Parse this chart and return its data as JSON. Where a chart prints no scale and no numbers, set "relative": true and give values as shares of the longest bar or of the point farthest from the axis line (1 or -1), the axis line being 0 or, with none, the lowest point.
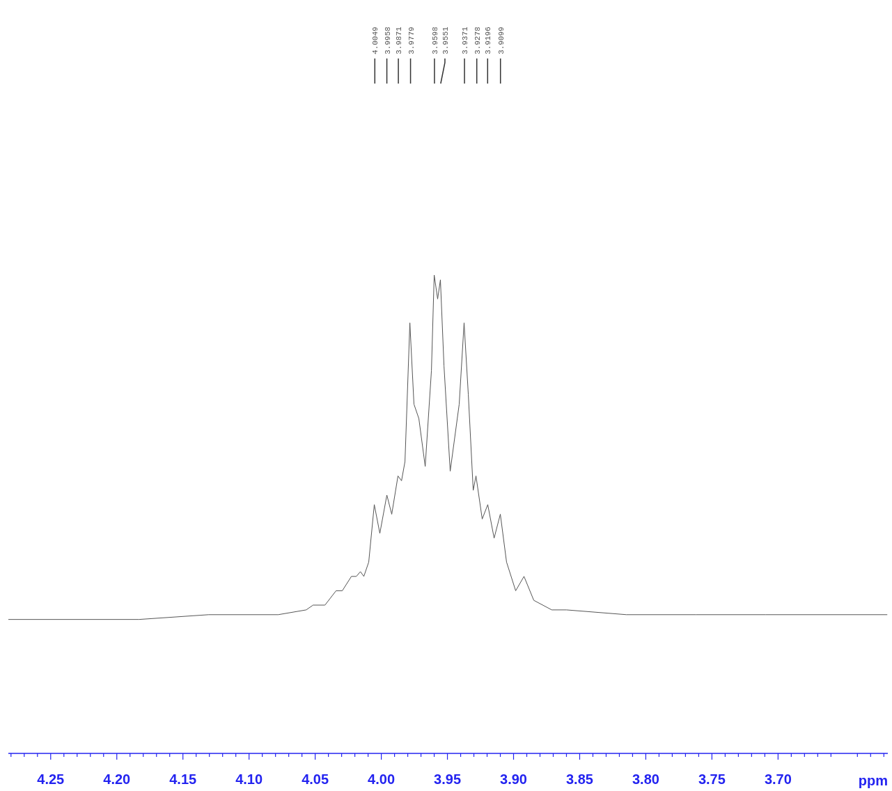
{
  "chart_data": {
    "type": "line",
    "relative": true,
    "xlabel": "ppm",
    "x": [
      4.282,
      4.1832,
      4.1305,
      4.0779,
      4.0568,
      4.0516,
      4.0426,
      4.0342,
      4.0295,
      4.0226,
      4.0189,
      4.0158,
      4.0132,
      4.0095,
      4.0053,
      4.0011,
      3.9958,
      3.9921,
      3.9874,
      3.9847,
      3.9821,
      3.9784,
      3.9753,
      3.9716,
      3.9668,
      3.9621,
      3.96,
      3.9574,
      3.9553,
      3.9526,
      3.9479,
      3.9411,
      3.9374,
      3.9342,
      3.9305,
      3.9284,
      3.9237,
      3.9195,
      3.9147,
      3.91,
      3.9053,
      3.8984,
      3.8921,
      3.8847,
      3.8711,
      3.86,
      3.8147,
      3.7621,
      3.7095,
      3.6174
    ],
    "series": [
      {
        "color": "#555555",
        "values": [
          0.28,
          0.28,
          0.29,
          0.29,
          0.3,
          0.31,
          0.31,
          0.34,
          0.34,
          0.37,
          0.37,
          0.38,
          0.37,
          0.4,
          0.52,
          0.46,
          0.54,
          0.5,
          0.58,
          0.57,
          0.61,
          0.9,
          0.73,
          0.7,
          0.6,
          0.8,
          1.0,
          0.95,
          0.99,
          0.81,
          0.59,
          0.73,
          0.9,
          0.75,
          0.55,
          0.58,
          0.49,
          0.52,
          0.45,
          0.5,
          0.4,
          0.34,
          0.37,
          0.32,
          0.3,
          0.3,
          0.29,
          0.29,
          0.29,
          0.29
        ]
      }
    ],
    "xlim": [
      4.282,
      3.617
    ],
    "xticks": [
      4.25,
      {
        "value": 4.2,
        "label": "4.20"
      },
      4.15,
      {
        "value": 4.1,
        "label": "4.10"
      },
      4.05,
      {
        "value": 4.0,
        "label": "4.00"
      },
      3.95,
      {
        "value": 3.9,
        "label": "3.90"
      },
      3.85,
      {
        "value": 3.8,
        "label": "3.80"
      },
      3.75,
      {
        "value": 3.7,
        "label": "3.70"
      }
    ],
    "annotations": [
      {
        "text": "4.0049",
        "x": 4.0049
      },
      {
        "text": "3.9958",
        "x": 3.9958
      },
      {
        "text": "3.9871",
        "x": 3.9871
      },
      {
        "text": "3.9779",
        "x": 3.9779
      },
      {
        "text": "3.9598",
        "x": 3.9598
      },
      {
        "text": "3.9551",
        "x": 3.9551
      },
      {
        "text": "3.9371",
        "x": 3.9371
      },
      {
        "text": "3.9278",
        "x": 3.9278
      },
      {
        "text": "3.9196",
        "x": 3.9196
      },
      {
        "text": "3.9099",
        "x": 3.9099
      }
    ]
  }
}
